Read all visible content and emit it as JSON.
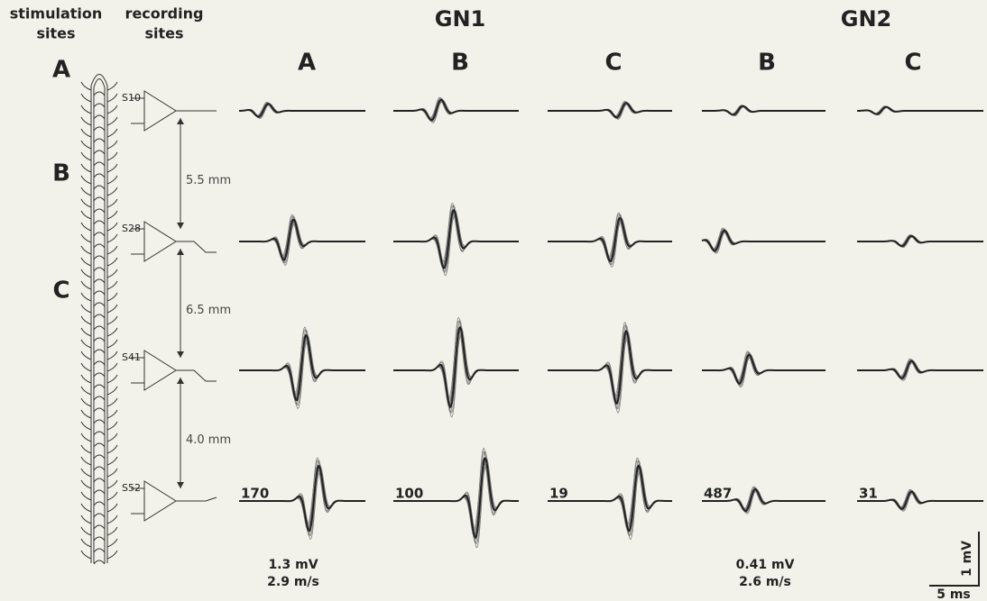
{
  "headers": {
    "stimulation": [
      "stimulation",
      "sites"
    ],
    "recording": [
      "recording",
      "sites"
    ]
  },
  "groups": [
    {
      "label": "GN1",
      "columns": [
        "A",
        "B",
        "C"
      ]
    },
    {
      "label": "GN2",
      "columns": [
        "B",
        "C"
      ]
    }
  ],
  "stimulation_sites": [
    "A",
    "B",
    "C"
  ],
  "recording_sites": [
    "S10",
    "S28",
    "S41",
    "S52"
  ],
  "distances": [
    "5.5 mm",
    "6.5 mm",
    "4.0 mm"
  ],
  "counts": [
    170,
    100,
    19,
    487,
    31
  ],
  "summaries": [
    {
      "amplitude": "1.3 mV",
      "velocity": "2.9 m/s"
    },
    {
      "amplitude": "0.41 mV",
      "velocity": "2.6 m/s"
    }
  ],
  "scale_bar": {
    "vertical": "1 mV",
    "horizontal": "5 ms"
  }
}
